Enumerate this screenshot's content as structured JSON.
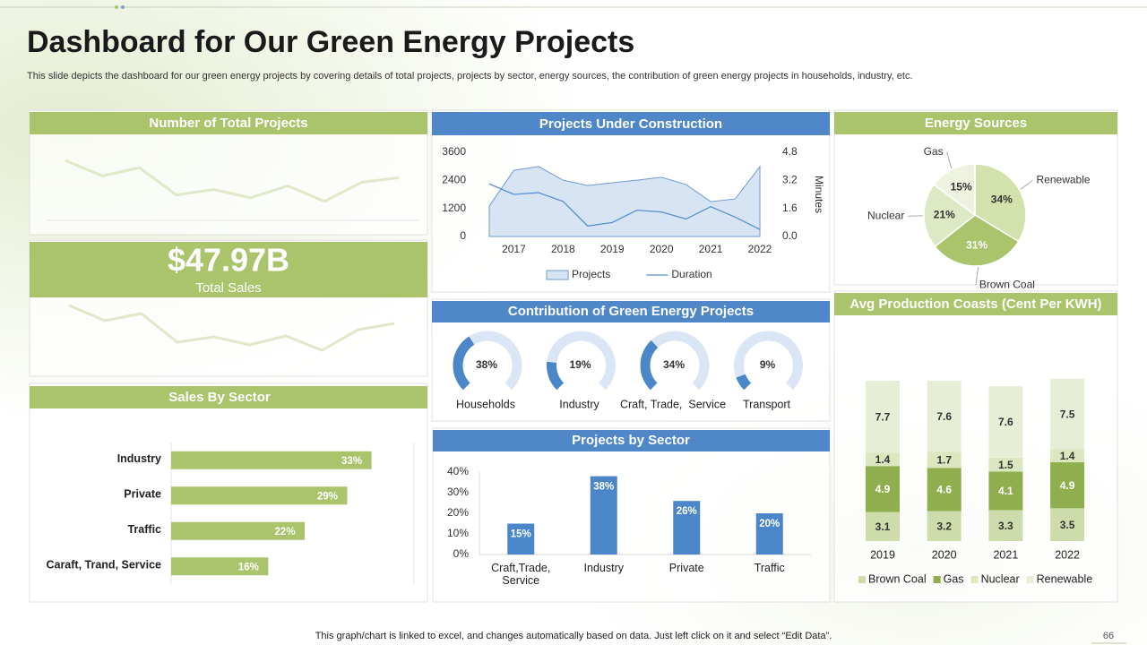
{
  "title": "Dashboard for Our Green Energy Projects",
  "subtitle": "This slide depicts the dashboard for our green energy projects by covering details of total projects, projects by sector, energy sources, the contribution of green energy projects in households, industry, etc.",
  "footer": "This graph/chart is linked to excel,  and changes automatically based on data. Just left click on it and select “Edit Data”.",
  "page_number": "66",
  "chart_data": [
    {
      "type": "line",
      "title": "Number of Total Projects",
      "color": "#dfe8c8",
      "baseline": true,
      "values": [
        66,
        49,
        58,
        28,
        34,
        25,
        38,
        21,
        42,
        47
      ],
      "ylim": [
        0,
        80
      ]
    },
    {
      "type": "line",
      "kpi": "$47.97B",
      "kpi_label": "Total Sales",
      "color": "#dfe8c8",
      "baseline": false,
      "values": [
        69,
        52,
        60,
        28,
        34,
        25,
        35,
        19,
        42,
        49
      ],
      "ylim": [
        0,
        80
      ]
    },
    {
      "type": "combo",
      "title": "Projects Under Construction",
      "x": [
        2016.5,
        2017,
        2017.5,
        2018,
        2018.5,
        2019,
        2019.5,
        2020,
        2020.5,
        2021,
        2021.5,
        2022
      ],
      "xlim": [
        2016.3,
        2022.2
      ],
      "xticks": [
        2017,
        2018,
        2019,
        2020,
        2021,
        2022
      ],
      "ylim": [
        0,
        3600
      ],
      "yticks": [
        0,
        1200,
        2400,
        3600
      ],
      "y2lim": [
        0,
        4.8
      ],
      "y2ticks": [
        {
          "value": 0,
          "label": "0.0"
        },
        1.6,
        3.2,
        4.8
      ],
      "y2label": "Minutes",
      "series": [
        {
          "name": "Projects",
          "type": "area",
          "color": "#d6e4f4",
          "edge_color": "#6f9bd3",
          "values": [
            1300,
            2830,
            2990,
            2410,
            2180,
            2300,
            2410,
            2530,
            2220,
            1490,
            1610,
            2990
          ]
        },
        {
          "name": "Duration",
          "type": "line",
          "axis": "y2",
          "color": "#5b8fcf",
          "values": [
            3.0,
            2.4,
            2.5,
            2.0,
            0.6,
            0.8,
            1.5,
            1.4,
            1.0,
            1.7,
            1.1,
            0.4
          ]
        }
      ]
    },
    {
      "type": "pie",
      "title": "Energy Sources",
      "categories": [
        "Renewable",
        "Brown Coal",
        "Nuclear",
        "Gas"
      ],
      "values": [
        34,
        31,
        21,
        15
      ],
      "value_labels": [
        "34%",
        "31%",
        "21%",
        "15%"
      ],
      "colors": [
        "#d3e1ad",
        "#a9c46b",
        "#dde8c4",
        "#eef3df"
      ]
    },
    {
      "type": "gauge",
      "title": "Contribution of Green Energy Projects",
      "categories": [
        "Households",
        "Industry",
        "Craft, Trade,  Service",
        "Transport"
      ],
      "values": [
        38,
        19,
        34,
        9
      ],
      "value_labels": [
        "38%",
        "19%",
        "34%",
        "9%"
      ],
      "max": 100,
      "color": "#4a86c8",
      "track_color": "#dae6f5"
    },
    {
      "type": "bar",
      "title": "Projects by Sector",
      "categories": [
        "Craft,Trade, Service",
        "Industry",
        "Private",
        "Traffic"
      ],
      "values": [
        15,
        38,
        26,
        20
      ],
      "value_labels": [
        "15%",
        "38%",
        "26%",
        "20%"
      ],
      "color": "#4a86c8",
      "ylim": [
        0,
        40
      ],
      "yticks": [
        {
          "value": 0,
          "label": "0%"
        },
        {
          "value": 10,
          "label": "10%"
        },
        {
          "value": 20,
          "label": "20%"
        },
        {
          "value": 30,
          "label": "30%"
        },
        {
          "value": 40,
          "label": "40%"
        }
      ]
    },
    {
      "type": "hbar",
      "title": "Sales By Sector",
      "categories": [
        "Industry",
        "Private",
        "Traffic",
        "Caraft, Trand, Service"
      ],
      "values": [
        33,
        29,
        22,
        16
      ],
      "value_labels": [
        "33%",
        "29%",
        "22%",
        "16%"
      ],
      "color": "#a9c46b",
      "xlim": [
        0,
        40
      ]
    },
    {
      "type": "stacked_bar",
      "title": "Avg Production Coasts  (Cent Per KWH)",
      "categories": [
        "2019",
        "2020",
        "2021",
        "2022"
      ],
      "ylim": [
        0,
        18
      ],
      "series": [
        {
          "name": "Brown Coal",
          "color": "#cddcaa",
          "values": [
            3.1,
            3.2,
            3.3,
            3.5
          ]
        },
        {
          "name": "Gas",
          "color": "#8fae4e",
          "values": [
            4.9,
            4.6,
            4.1,
            4.9
          ]
        },
        {
          "name": "Nuclear",
          "color": "#dce7bf",
          "values": [
            1.4,
            1.7,
            1.5,
            1.4
          ]
        },
        {
          "name": "Renewable",
          "color": "#e7eed6",
          "values": [
            7.7,
            7.6,
            7.6,
            7.5
          ]
        }
      ]
    }
  ]
}
